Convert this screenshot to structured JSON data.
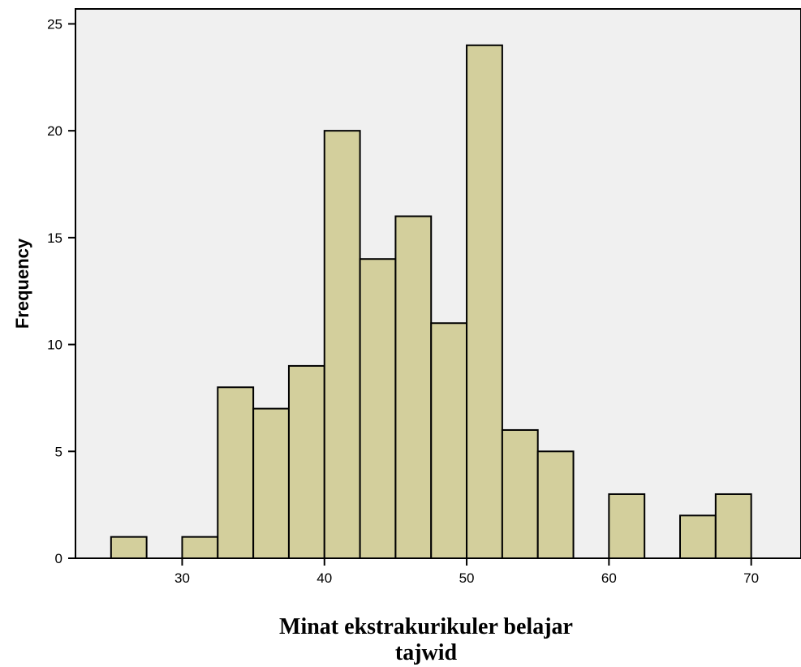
{
  "chart_data": {
    "type": "bar",
    "title": "",
    "xlabel_lines": [
      "Minat ekstrakurikuler belajar",
      "tajwid"
    ],
    "ylabel": "Frequency",
    "xlim": [
      22.5,
      73.5
    ],
    "ylim": [
      0,
      25.7
    ],
    "xticks": [
      30,
      40,
      50,
      60,
      70
    ],
    "yticks": [
      0,
      5,
      10,
      15,
      20,
      25
    ],
    "bin_width": 2.5,
    "bins": [
      {
        "start": 25.0,
        "value": 1
      },
      {
        "start": 27.5,
        "value": 0
      },
      {
        "start": 30.0,
        "value": 1
      },
      {
        "start": 32.5,
        "value": 8
      },
      {
        "start": 35.0,
        "value": 7
      },
      {
        "start": 37.5,
        "value": 9
      },
      {
        "start": 40.0,
        "value": 20
      },
      {
        "start": 42.5,
        "value": 14
      },
      {
        "start": 45.0,
        "value": 16
      },
      {
        "start": 47.5,
        "value": 11
      },
      {
        "start": 50.0,
        "value": 24
      },
      {
        "start": 52.5,
        "value": 6
      },
      {
        "start": 55.0,
        "value": 5
      },
      {
        "start": 57.5,
        "value": 0
      },
      {
        "start": 60.0,
        "value": 3
      },
      {
        "start": 62.5,
        "value": 0
      },
      {
        "start": 65.0,
        "value": 2
      },
      {
        "start": 67.5,
        "value": 3
      }
    ],
    "colors": {
      "plot_background": "#f0f0f0",
      "bar_fill": "#d3cf9c",
      "bar_stroke": "#000000"
    }
  }
}
